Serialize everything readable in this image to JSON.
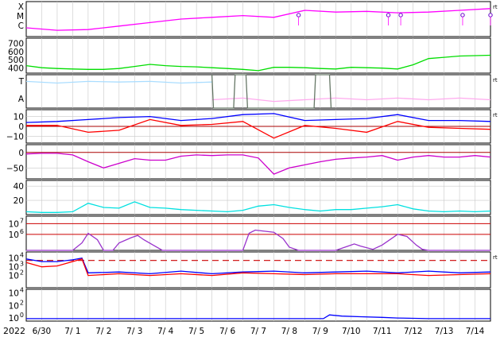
{
  "chart_data": {
    "type": "line",
    "x_start_label": "2022",
    "x_ticks": [
      "6/30",
      "7/ 1",
      "7/ 2",
      "7/ 3",
      "7/ 4",
      "7/ 5",
      "7/ 6",
      "7/ 7",
      "7/ 8",
      "7/ 9",
      "7/10",
      "7/11",
      "7/12",
      "7/13",
      "7/14"
    ],
    "panels": [
      {
        "id": "xray-class",
        "y_ticks": [
          "X",
          "M",
          "C"
        ],
        "right_label": "rt",
        "series": [
          {
            "color": "#ff00ff",
            "x": [
              0,
              1,
              2,
              3,
              4,
              5,
              6,
              7,
              8,
              9,
              10,
              11,
              12,
              13,
              14,
              15
            ],
            "y": [
              0.25,
              0.18,
              0.2,
              0.3,
              0.4,
              0.5,
              0.55,
              0.6,
              0.55,
              0.75,
              0.7,
              0.72,
              0.68,
              0.7,
              0.75,
              0.8
            ]
          }
        ],
        "flare_markers_x": [
          8.8,
          11.7,
          12.1,
          14.1,
          15
        ]
      },
      {
        "id": "solar-wind-speed",
        "y_ticks": [
          "700",
          "600",
          "500",
          "400"
        ],
        "ylim": [
          340,
          760
        ],
        "series": [
          {
            "color": "#00dd00",
            "x": [
              0,
              0.5,
              1,
              1.5,
              2,
              2.5,
              3,
              3.5,
              4,
              4.5,
              5,
              5.5,
              6,
              6.5,
              7,
              7.5,
              8,
              8.5,
              9,
              9.5,
              10,
              10.5,
              11,
              11.5,
              12,
              12.5,
              13,
              13.5,
              14,
              14.5,
              15
            ],
            "y": [
              430,
              405,
              395,
              390,
              385,
              385,
              395,
              420,
              445,
              430,
              420,
              415,
              405,
              395,
              385,
              370,
              410,
              410,
              405,
              395,
              390,
              410,
              405,
              400,
              390,
              440,
              515,
              530,
              545,
              550,
              555
            ]
          }
        ]
      },
      {
        "id": "imf-direction",
        "y_ticks": [
          "T",
          "A"
        ],
        "right_label": "rt",
        "series": [
          {
            "color": "#aaddff",
            "x": [
              0,
              1,
              2,
              3,
              4,
              5,
              6
            ],
            "y": [
              0.8,
              0.75,
              0.8,
              0.78,
              0.8,
              0.75,
              0.78
            ]
          },
          {
            "color": "#ffaaee",
            "x": [
              6,
              7,
              8,
              9,
              10,
              11,
              12,
              13,
              14,
              15
            ],
            "y": [
              0.25,
              0.3,
              0.2,
              0.25,
              0.3,
              0.25,
              0.3,
              0.25,
              0.3,
              0.25
            ]
          },
          {
            "color": "#667766",
            "x": [
              6,
              6.05,
              6.7,
              6.75,
              7.1,
              7.15,
              9.3,
              9.35,
              9.8,
              9.85
            ],
            "y": [
              1,
              0,
              0,
              1,
              1,
              0,
              0,
              1,
              1,
              0
            ]
          }
        ]
      },
      {
        "id": "imf-bz-bt",
        "y_ticks": [
          "10",
          "0",
          "−10"
        ],
        "ylim": [
          -17,
          17
        ],
        "right_label": "rt",
        "series": [
          {
            "color": "#0000ff",
            "x": [
              0,
              1,
              2,
              3,
              4,
              5,
              6,
              7,
              8,
              9,
              10,
              11,
              12,
              13,
              14,
              15
            ],
            "y": [
              4,
              5,
              7,
              9,
              10,
              6,
              8,
              12,
              13,
              6,
              7,
              8,
              12,
              6,
              6,
              5
            ]
          },
          {
            "color": "#ff0000",
            "x": [
              0,
              1,
              2,
              3,
              4,
              5,
              6,
              7,
              8,
              9,
              10,
              11,
              12,
              13,
              14,
              15
            ],
            "y": [
              1,
              1,
              -6,
              -4,
              7,
              1,
              2,
              5,
              -12,
              1,
              -2,
              -6,
              5,
              -1,
              -2,
              -3
            ]
          }
        ]
      },
      {
        "id": "dst",
        "y_ticks": [
          "0",
          "−50"
        ],
        "ylim": [
          -85,
          25
        ],
        "series": [
          {
            "color": "#cc00cc",
            "x": [
              0,
              0.5,
              1,
              1.5,
              2,
              2.5,
              3,
              3.5,
              4,
              4.5,
              5,
              5.5,
              6,
              6.5,
              7,
              7.5,
              8,
              8.5,
              9,
              9.5,
              10,
              10.5,
              11,
              11.5,
              12,
              12.5,
              13,
              13.5,
              14,
              14.5,
              15
            ],
            "y": [
              -5,
              -3,
              -3,
              -8,
              -30,
              -50,
              -35,
              -20,
              -25,
              -25,
              -12,
              -8,
              -10,
              -8,
              -8,
              -18,
              -70,
              -50,
              -40,
              -30,
              -22,
              -18,
              -15,
              -10,
              -25,
              -15,
              -10,
              -15,
              -15,
              -10,
              -15
            ]
          }
        ]
      },
      {
        "id": "kp",
        "y_ticks": [
          "40",
          "20"
        ],
        "ylim": [
          0,
          48
        ],
        "series": [
          {
            "color": "#00e0e0",
            "x": [
              0,
              0.5,
              1,
              1.5,
              2,
              2.5,
              3,
              3.5,
              4,
              4.5,
              5,
              5.5,
              6,
              6.5,
              7,
              7.5,
              8,
              8.5,
              9,
              9.5,
              10,
              10.5,
              11,
              11.5,
              12,
              12.5,
              13,
              13.5,
              14,
              14.5,
              15
            ],
            "y": [
              4,
              3,
              3,
              4,
              16,
              10,
              9,
              18,
              10,
              9,
              7,
              6,
              5,
              4,
              6,
              12,
              14,
              10,
              7,
              5,
              7,
              7,
              9,
              11,
              14,
              8,
              5,
              4,
              5,
              4,
              5
            ]
          }
        ]
      },
      {
        "id": "proton-flux",
        "y_ticks_exp": [
          {
            "base": "10",
            "exp": "7",
            "v": 7
          },
          {
            "base": "10",
            "exp": "6",
            "v": 6
          }
        ],
        "ylim": [
          4.5,
          7.7
        ],
        "series": [
          {
            "color": "#9933cc",
            "x": [
              0,
              1.5,
              1.8,
              2,
              2.3,
              2.5,
              2.8,
              3,
              3.4,
              3.6,
              3.8,
              4.1,
              4.4,
              4.6,
              7,
              7.2,
              7.4,
              8,
              8.3,
              8.5,
              8.8,
              10,
              10.4,
              10.6,
              10.8,
              11.2,
              11.5,
              12,
              12.3,
              12.6,
              12.8,
              13,
              15
            ],
            "y": [
              4.5,
              4.5,
              5.2,
              6.1,
              5.5,
              4.5,
              4.5,
              5.2,
              5.7,
              5.9,
              5.5,
              5.0,
              4.5,
              4.5,
              4.5,
              6.1,
              6.4,
              6.2,
              5.6,
              4.8,
              4.5,
              4.5,
              4.9,
              5.1,
              4.9,
              4.6,
              5.0,
              6.0,
              5.8,
              5.0,
              4.6,
              4.5,
              4.5
            ]
          }
        ]
      },
      {
        "id": "electron-flux",
        "y_ticks_exp": [
          {
            "base": "10",
            "exp": "4",
            "v": 4
          },
          {
            "base": "10",
            "exp": "3",
            "v": 3
          },
          {
            "base": "10",
            "exp": "2",
            "v": 2
          }
        ],
        "ylim": [
          0.6,
          4.7
        ],
        "threshold_log": 4,
        "right_label": "rt",
        "series": [
          {
            "color": "#0000ff",
            "x": [
              0,
              0.5,
              1,
              1.5,
              1.8,
              2,
              3,
              4,
              5,
              6,
              7,
              8,
              9,
              10,
              11,
              12,
              13,
              14,
              15
            ],
            "y": [
              3.9,
              3.6,
              3.6,
              3.8,
              4.0,
              2.3,
              2.4,
              2.2,
              2.5,
              2.2,
              2.4,
              2.5,
              2.3,
              2.4,
              2.5,
              2.3,
              2.5,
              2.3,
              2.4
            ]
          },
          {
            "color": "#ff0000",
            "x": [
              0,
              0.5,
              1,
              1.5,
              1.8,
              2,
              3,
              4,
              5,
              6,
              7,
              8,
              9,
              10,
              11,
              12,
              13,
              14,
              15
            ],
            "y": [
              3.5,
              3.0,
              3.1,
              3.6,
              3.9,
              2.0,
              2.2,
              2.0,
              2.2,
              2.0,
              2.3,
              2.2,
              2.1,
              2.2,
              2.2,
              2.2,
              2.0,
              2.1,
              2.2
            ]
          }
        ]
      },
      {
        "id": "neutron-count",
        "y_ticks_exp": [
          {
            "base": "10",
            "exp": "4",
            "v": 4
          },
          {
            "base": "10",
            "exp": "2",
            "v": 2
          },
          {
            "base": "10",
            "exp": "0",
            "v": 0
          }
        ],
        "ylim": [
          -0.5,
          4.6
        ],
        "series": [
          {
            "color": "#0000ff",
            "x": [
              0,
              4,
              8,
              9.6,
              9.8,
              10.2,
              10.8,
              11.5,
              12,
              13,
              14,
              15
            ],
            "y": [
              -0.1,
              -0.1,
              -0.1,
              -0.1,
              0.5,
              0.3,
              0.2,
              0.1,
              0.0,
              -0.1,
              -0.1,
              -0.1
            ]
          }
        ]
      }
    ]
  }
}
